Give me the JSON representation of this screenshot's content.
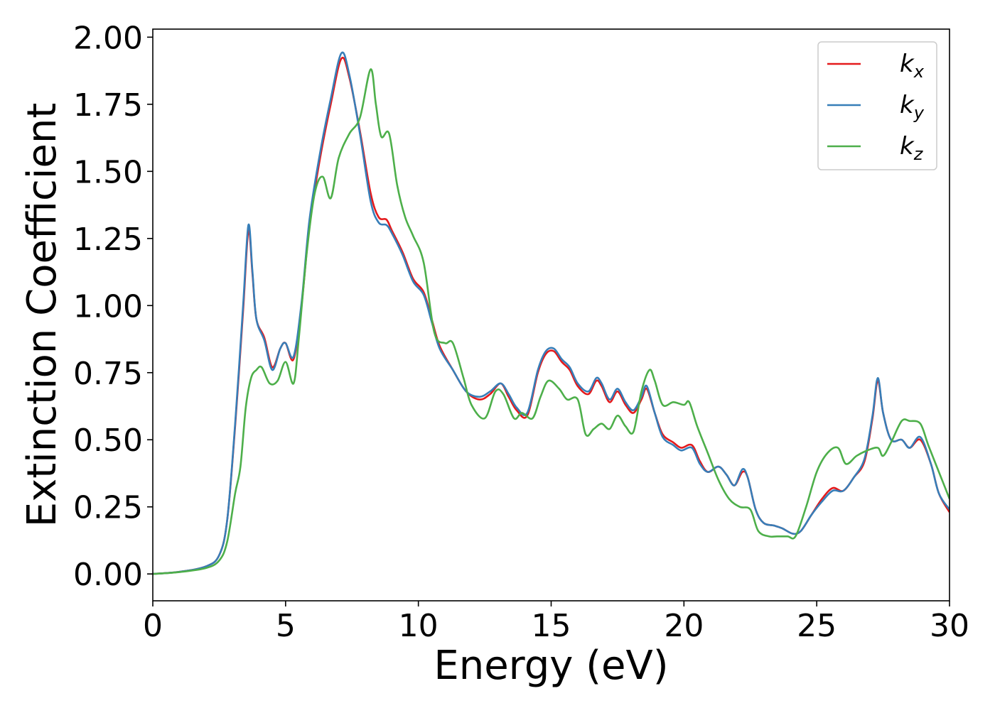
{
  "chart_data": {
    "type": "line",
    "title": "",
    "xlabel": "Energy (eV)",
    "ylabel": "Extinction Coefficient",
    "xlim": [
      0,
      30
    ],
    "ylim": [
      -0.1,
      2.03
    ],
    "x_ticks": [
      "0",
      "5",
      "10",
      "15",
      "20",
      "25",
      "30"
    ],
    "y_ticks": [
      "0.00",
      "0.25",
      "0.50",
      "0.75",
      "1.00",
      "1.25",
      "1.50",
      "1.75",
      "2.00"
    ],
    "grid": false,
    "legend_position": "top-right",
    "series": [
      {
        "name": "k",
        "subscript": "x",
        "color": "#e41a1c",
        "points": [
          [
            0,
            0.0
          ],
          [
            1,
            0.008
          ],
          [
            2,
            0.028
          ],
          [
            2.5,
            0.07
          ],
          [
            2.8,
            0.2
          ],
          [
            3.1,
            0.55
          ],
          [
            3.4,
            0.98
          ],
          [
            3.6,
            1.28
          ],
          [
            3.75,
            1.12
          ],
          [
            3.9,
            0.95
          ],
          [
            4.2,
            0.88
          ],
          [
            4.5,
            0.77
          ],
          [
            4.8,
            0.84
          ],
          [
            5.0,
            0.86
          ],
          [
            5.3,
            0.8
          ],
          [
            5.6,
            1.0
          ],
          [
            5.9,
            1.3
          ],
          [
            6.3,
            1.55
          ],
          [
            6.7,
            1.75
          ],
          [
            7.1,
            1.92
          ],
          [
            7.4,
            1.85
          ],
          [
            7.8,
            1.65
          ],
          [
            8.2,
            1.42
          ],
          [
            8.5,
            1.33
          ],
          [
            8.8,
            1.32
          ],
          [
            9.0,
            1.28
          ],
          [
            9.4,
            1.2
          ],
          [
            9.8,
            1.1
          ],
          [
            10.2,
            1.05
          ],
          [
            10.5,
            0.95
          ],
          [
            10.8,
            0.85
          ],
          [
            11.3,
            0.76
          ],
          [
            11.8,
            0.68
          ],
          [
            12.3,
            0.65
          ],
          [
            12.7,
            0.67
          ],
          [
            13.1,
            0.71
          ],
          [
            13.4,
            0.66
          ],
          [
            13.7,
            0.61
          ],
          [
            14.1,
            0.59
          ],
          [
            14.5,
            0.75
          ],
          [
            14.8,
            0.82
          ],
          [
            15.1,
            0.83
          ],
          [
            15.4,
            0.79
          ],
          [
            15.7,
            0.76
          ],
          [
            16.0,
            0.7
          ],
          [
            16.4,
            0.67
          ],
          [
            16.7,
            0.72
          ],
          [
            16.9,
            0.7
          ],
          [
            17.2,
            0.64
          ],
          [
            17.5,
            0.68
          ],
          [
            17.8,
            0.63
          ],
          [
            18.1,
            0.6
          ],
          [
            18.4,
            0.65
          ],
          [
            18.6,
            0.69
          ],
          [
            18.9,
            0.6
          ],
          [
            19.2,
            0.52
          ],
          [
            19.6,
            0.49
          ],
          [
            19.9,
            0.47
          ],
          [
            20.3,
            0.48
          ],
          [
            20.6,
            0.42
          ],
          [
            20.9,
            0.38
          ],
          [
            21.3,
            0.4
          ],
          [
            21.6,
            0.37
          ],
          [
            21.9,
            0.33
          ],
          [
            22.2,
            0.38
          ],
          [
            22.4,
            0.36
          ],
          [
            22.7,
            0.24
          ],
          [
            23.0,
            0.19
          ],
          [
            23.4,
            0.18
          ],
          [
            23.7,
            0.17
          ],
          [
            24.1,
            0.15
          ],
          [
            24.4,
            0.16
          ],
          [
            24.8,
            0.22
          ],
          [
            25.2,
            0.28
          ],
          [
            25.6,
            0.32
          ],
          [
            26.0,
            0.31
          ],
          [
            26.4,
            0.36
          ],
          [
            26.8,
            0.42
          ],
          [
            27.1,
            0.58
          ],
          [
            27.3,
            0.72
          ],
          [
            27.5,
            0.6
          ],
          [
            27.8,
            0.5
          ],
          [
            28.2,
            0.5
          ],
          [
            28.5,
            0.47
          ],
          [
            28.9,
            0.5
          ],
          [
            29.3,
            0.41
          ],
          [
            29.6,
            0.3
          ],
          [
            30,
            0.23
          ]
        ]
      },
      {
        "name": "k",
        "subscript": "y",
        "color": "#377eb8",
        "points": [
          [
            0,
            0.0
          ],
          [
            1,
            0.008
          ],
          [
            2,
            0.028
          ],
          [
            2.5,
            0.07
          ],
          [
            2.8,
            0.2
          ],
          [
            3.1,
            0.56
          ],
          [
            3.4,
            1.0
          ],
          [
            3.6,
            1.3
          ],
          [
            3.75,
            1.13
          ],
          [
            3.9,
            0.95
          ],
          [
            4.2,
            0.87
          ],
          [
            4.5,
            0.76
          ],
          [
            4.8,
            0.84
          ],
          [
            5.0,
            0.86
          ],
          [
            5.3,
            0.81
          ],
          [
            5.6,
            1.01
          ],
          [
            5.9,
            1.32
          ],
          [
            6.3,
            1.57
          ],
          [
            6.7,
            1.77
          ],
          [
            7.1,
            1.94
          ],
          [
            7.4,
            1.86
          ],
          [
            7.8,
            1.64
          ],
          [
            8.2,
            1.39
          ],
          [
            8.5,
            1.31
          ],
          [
            8.8,
            1.3
          ],
          [
            9.0,
            1.27
          ],
          [
            9.4,
            1.19
          ],
          [
            9.8,
            1.09
          ],
          [
            10.2,
            1.04
          ],
          [
            10.5,
            0.94
          ],
          [
            10.8,
            0.84
          ],
          [
            11.3,
            0.76
          ],
          [
            11.8,
            0.68
          ],
          [
            12.3,
            0.66
          ],
          [
            12.7,
            0.68
          ],
          [
            13.1,
            0.71
          ],
          [
            13.4,
            0.67
          ],
          [
            13.7,
            0.62
          ],
          [
            14.1,
            0.6
          ],
          [
            14.5,
            0.76
          ],
          [
            14.8,
            0.83
          ],
          [
            15.1,
            0.84
          ],
          [
            15.4,
            0.8
          ],
          [
            15.7,
            0.77
          ],
          [
            16.0,
            0.71
          ],
          [
            16.4,
            0.68
          ],
          [
            16.7,
            0.73
          ],
          [
            16.9,
            0.71
          ],
          [
            17.2,
            0.65
          ],
          [
            17.5,
            0.69
          ],
          [
            17.8,
            0.64
          ],
          [
            18.1,
            0.61
          ],
          [
            18.4,
            0.66
          ],
          [
            18.6,
            0.7
          ],
          [
            18.9,
            0.6
          ],
          [
            19.2,
            0.51
          ],
          [
            19.6,
            0.48
          ],
          [
            19.9,
            0.46
          ],
          [
            20.3,
            0.47
          ],
          [
            20.6,
            0.41
          ],
          [
            20.9,
            0.38
          ],
          [
            21.3,
            0.4
          ],
          [
            21.6,
            0.37
          ],
          [
            21.9,
            0.33
          ],
          [
            22.2,
            0.39
          ],
          [
            22.4,
            0.36
          ],
          [
            22.7,
            0.24
          ],
          [
            23.0,
            0.19
          ],
          [
            23.4,
            0.18
          ],
          [
            23.7,
            0.17
          ],
          [
            24.1,
            0.15
          ],
          [
            24.4,
            0.16
          ],
          [
            24.8,
            0.22
          ],
          [
            25.2,
            0.27
          ],
          [
            25.6,
            0.31
          ],
          [
            26.0,
            0.31
          ],
          [
            26.4,
            0.36
          ],
          [
            26.8,
            0.43
          ],
          [
            27.1,
            0.59
          ],
          [
            27.3,
            0.73
          ],
          [
            27.5,
            0.6
          ],
          [
            27.8,
            0.5
          ],
          [
            28.2,
            0.5
          ],
          [
            28.5,
            0.47
          ],
          [
            28.9,
            0.51
          ],
          [
            29.3,
            0.41
          ],
          [
            29.6,
            0.3
          ],
          [
            30,
            0.24
          ]
        ]
      },
      {
        "name": "k",
        "subscript": "z",
        "color": "#4daf4a",
        "points": [
          [
            0,
            0.0
          ],
          [
            1,
            0.007
          ],
          [
            2,
            0.022
          ],
          [
            2.5,
            0.05
          ],
          [
            2.8,
            0.12
          ],
          [
            3.1,
            0.3
          ],
          [
            3.3,
            0.4
          ],
          [
            3.5,
            0.62
          ],
          [
            3.7,
            0.73
          ],
          [
            3.9,
            0.76
          ],
          [
            4.1,
            0.77
          ],
          [
            4.4,
            0.71
          ],
          [
            4.7,
            0.72
          ],
          [
            5.0,
            0.79
          ],
          [
            5.3,
            0.71
          ],
          [
            5.5,
            0.88
          ],
          [
            5.8,
            1.2
          ],
          [
            6.1,
            1.42
          ],
          [
            6.4,
            1.48
          ],
          [
            6.7,
            1.4
          ],
          [
            7.0,
            1.55
          ],
          [
            7.4,
            1.64
          ],
          [
            7.8,
            1.7
          ],
          [
            8.2,
            1.88
          ],
          [
            8.4,
            1.75
          ],
          [
            8.6,
            1.63
          ],
          [
            8.9,
            1.64
          ],
          [
            9.2,
            1.45
          ],
          [
            9.5,
            1.33
          ],
          [
            9.8,
            1.26
          ],
          [
            10.2,
            1.16
          ],
          [
            10.6,
            0.9
          ],
          [
            11.0,
            0.86
          ],
          [
            11.3,
            0.86
          ],
          [
            11.7,
            0.73
          ],
          [
            12.0,
            0.63
          ],
          [
            12.5,
            0.58
          ],
          [
            12.9,
            0.68
          ],
          [
            13.2,
            0.67
          ],
          [
            13.6,
            0.58
          ],
          [
            13.9,
            0.6
          ],
          [
            14.3,
            0.58
          ],
          [
            14.6,
            0.66
          ],
          [
            14.9,
            0.72
          ],
          [
            15.3,
            0.69
          ],
          [
            15.6,
            0.65
          ],
          [
            16.0,
            0.65
          ],
          [
            16.3,
            0.52
          ],
          [
            16.6,
            0.54
          ],
          [
            16.9,
            0.56
          ],
          [
            17.2,
            0.54
          ],
          [
            17.5,
            0.59
          ],
          [
            17.8,
            0.55
          ],
          [
            18.1,
            0.53
          ],
          [
            18.4,
            0.68
          ],
          [
            18.7,
            0.76
          ],
          [
            18.9,
            0.72
          ],
          [
            19.2,
            0.63
          ],
          [
            19.6,
            0.64
          ],
          [
            20.0,
            0.63
          ],
          [
            20.2,
            0.64
          ],
          [
            20.5,
            0.55
          ],
          [
            20.9,
            0.45
          ],
          [
            21.3,
            0.35
          ],
          [
            21.7,
            0.28
          ],
          [
            22.1,
            0.25
          ],
          [
            22.5,
            0.24
          ],
          [
            22.8,
            0.16
          ],
          [
            23.2,
            0.14
          ],
          [
            23.5,
            0.14
          ],
          [
            23.9,
            0.14
          ],
          [
            24.2,
            0.14
          ],
          [
            24.6,
            0.25
          ],
          [
            25.0,
            0.38
          ],
          [
            25.4,
            0.45
          ],
          [
            25.8,
            0.47
          ],
          [
            26.1,
            0.41
          ],
          [
            26.5,
            0.44
          ],
          [
            26.9,
            0.46
          ],
          [
            27.3,
            0.47
          ],
          [
            27.5,
            0.44
          ],
          [
            27.8,
            0.49
          ],
          [
            28.2,
            0.57
          ],
          [
            28.5,
            0.57
          ],
          [
            28.9,
            0.56
          ],
          [
            29.2,
            0.48
          ],
          [
            29.6,
            0.38
          ],
          [
            30,
            0.28
          ]
        ]
      }
    ]
  }
}
